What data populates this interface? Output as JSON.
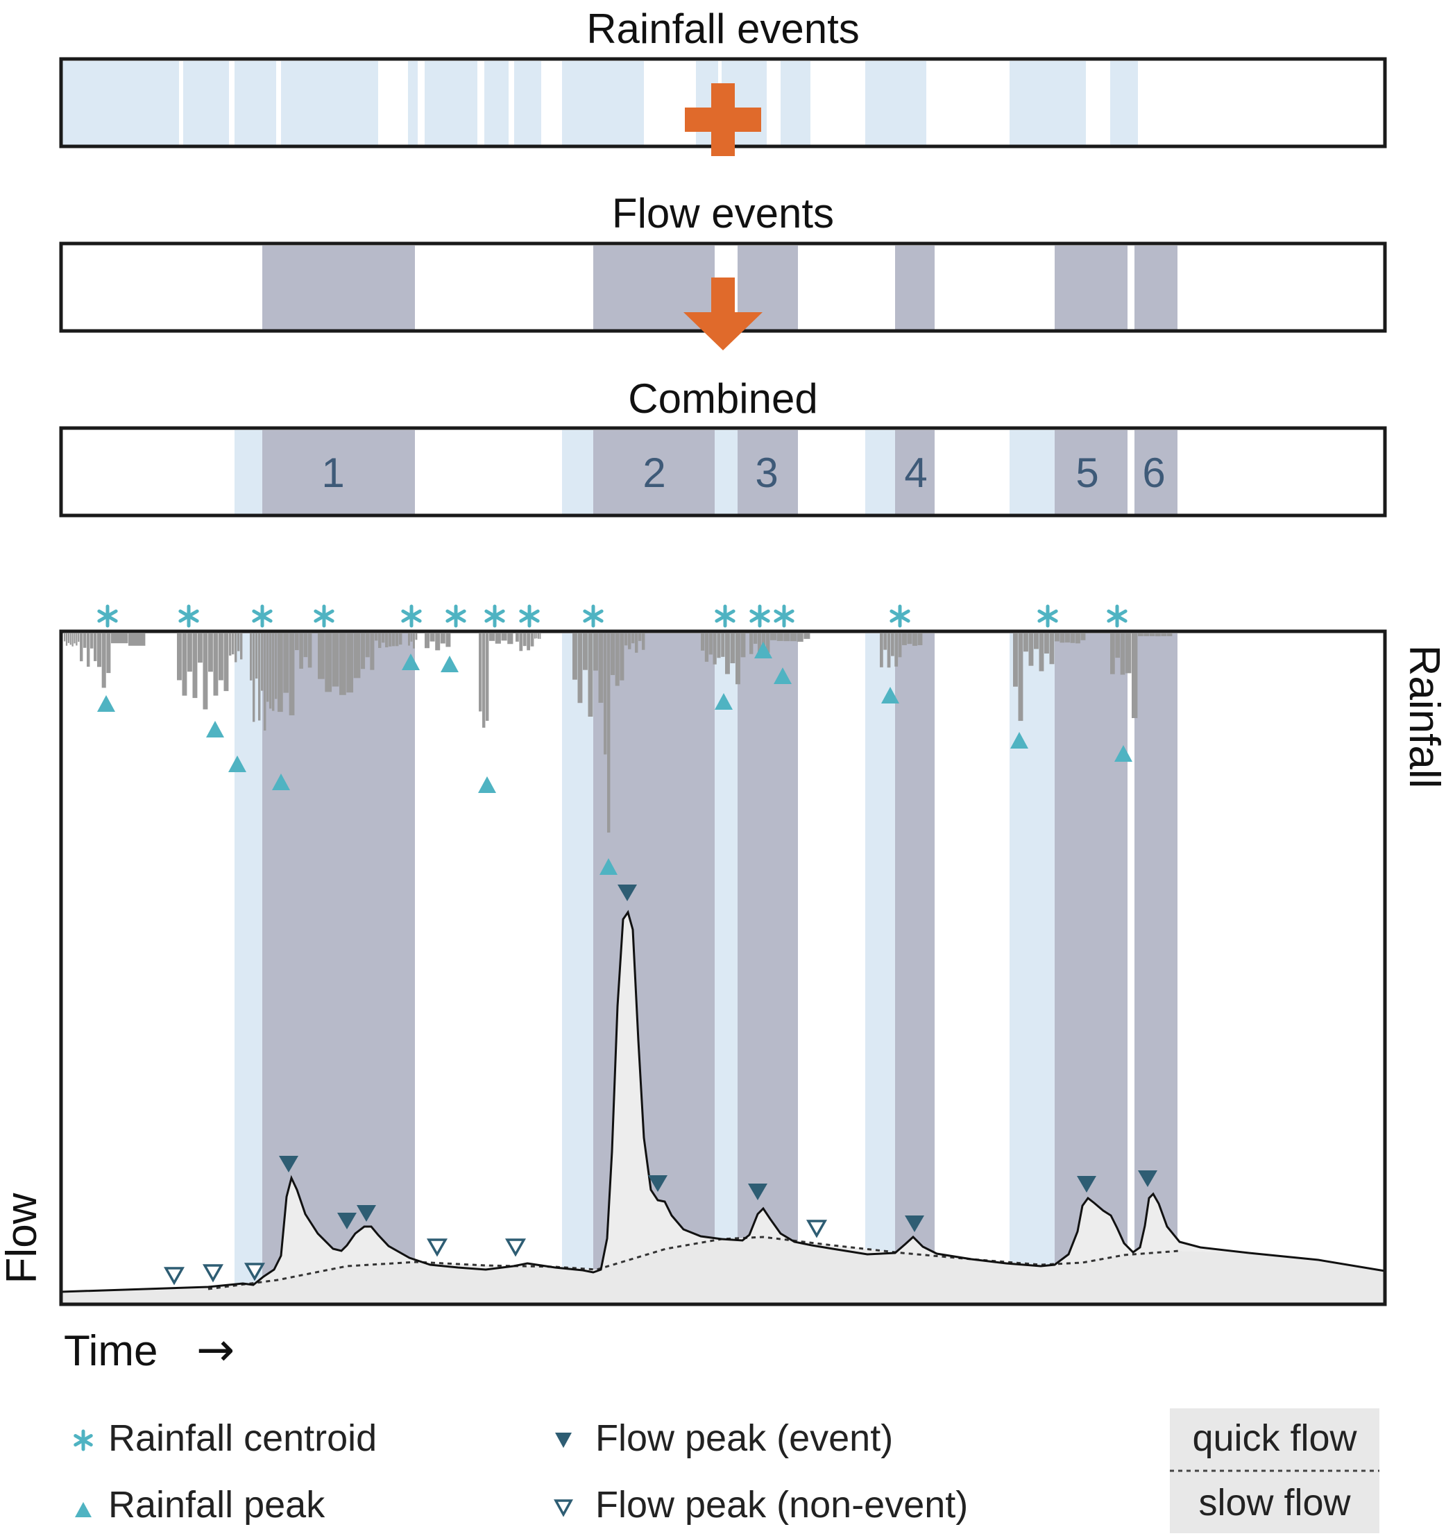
{
  "panels": {
    "rainfall_title": "Rainfall events",
    "flow_title": "Flow events",
    "combined_title": "Combined",
    "combined_event_numbers": [
      "1",
      "2",
      "3",
      "4",
      "5",
      "6"
    ]
  },
  "hydrograph": {
    "y_label_flow": "Flow",
    "y_label_rainfall": "Rainfall",
    "x_label": "Time",
    "x_arrow": "→"
  },
  "legend": {
    "rainfall_centroid": "Rainfall centroid",
    "rainfall_peak": "Rainfall peak",
    "flow_peak_event": "Flow peak (event)",
    "flow_peak_nonevent": "Flow peak (non-event)",
    "quick_flow": "quick flow",
    "slow_flow": "slow flow"
  },
  "colors": {
    "rain_event": "#dce9f4",
    "flow_event": "#b7bac9",
    "rain_bars": "#9a9a9a",
    "rainfall_marker": "#4fb3c2",
    "flow_peak_marker": "#2e5d73",
    "operator_arrow": "#e06a2b",
    "event_number": "#3e5a78",
    "legend_box": "#e8e8e8"
  },
  "icons": {
    "plus": "plus-icon",
    "down_arrow": "down-arrow-icon",
    "centroid": "asterisk-icon",
    "rain_peak": "triangle-up-icon",
    "flow_peak_event": "triangle-down-filled-icon",
    "flow_peak_nonevent": "triangle-down-outline-icon"
  }
}
